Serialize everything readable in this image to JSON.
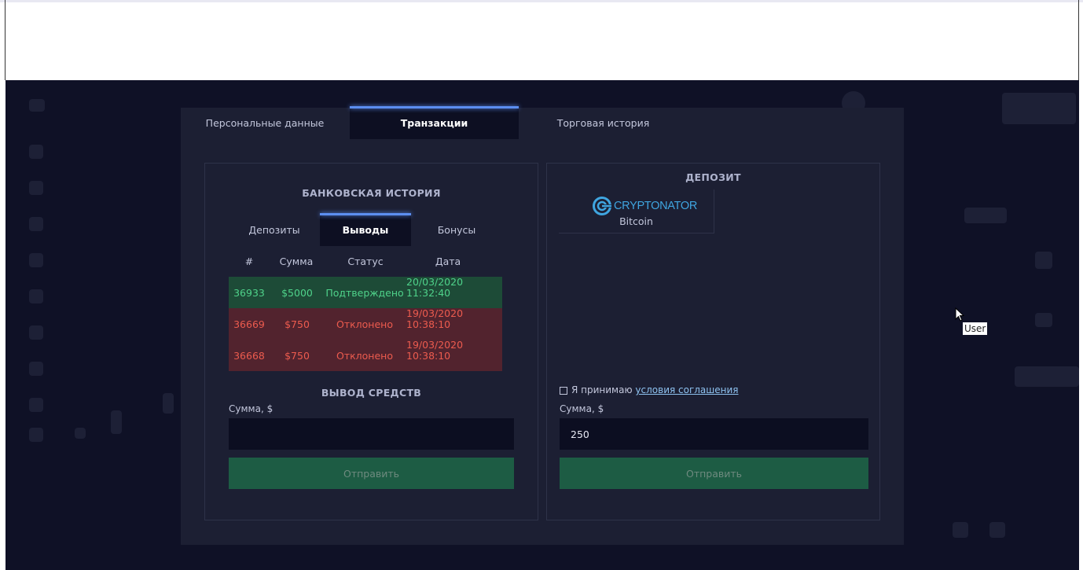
{
  "tabs": [
    {
      "label": "Персональные данные"
    },
    {
      "label": "Транзакции"
    },
    {
      "label": "Торговая история"
    }
  ],
  "bank_history": {
    "title": "БАНКОВСКАЯ ИСТОРИЯ",
    "subtabs": [
      {
        "label": "Депозиты"
      },
      {
        "label": "Выводы"
      },
      {
        "label": "Бонусы"
      }
    ],
    "columns": [
      "#",
      "Сумма",
      "Статус",
      "Дата"
    ],
    "rows": [
      {
        "id": "36933",
        "amount": "$5000",
        "status": "Подтверждено",
        "date1": "20/03/2020",
        "date2": "11:32:40"
      },
      {
        "id": "36669",
        "amount": "$750",
        "status": "Отклонено",
        "date1": "19/03/2020",
        "date2": "10:38:10"
      },
      {
        "id": "36668",
        "amount": "$750",
        "status": "Отклонено",
        "date1": "19/03/2020",
        "date2": "10:38:10"
      }
    ]
  },
  "withdraw": {
    "title": "ВЫВОД СРЕДСТВ",
    "amount_label": "Сумма,  $",
    "amount_value": "",
    "submit_label": "Отправить"
  },
  "deposit": {
    "title": "ДЕПОЗИТ",
    "method_logo_text": "CRYPTONATOR",
    "method_name": "Bitcoin",
    "agree_text": "Я принимаю",
    "agree_link": "условия соглашения",
    "amount_label": "Сумма,  $",
    "amount_value": "250",
    "submit_label": "Отправить"
  },
  "tooltip": "User",
  "colors": {
    "accent": "#5c8ef0",
    "success_bg": "#1d4b37",
    "success_text": "#4fd28a",
    "danger_bg": "#52232e",
    "danger_text": "#ec5b4e",
    "button_bg": "#1d5c44"
  }
}
